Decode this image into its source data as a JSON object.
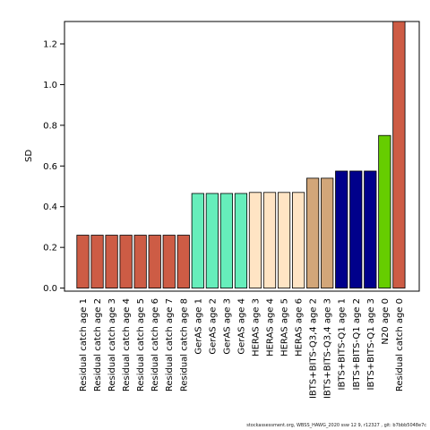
{
  "chart_data": {
    "type": "bar",
    "title": "",
    "xlabel": "",
    "ylabel": "SD",
    "ylim": [
      -0.015,
      1.31
    ],
    "yticks": [
      0.0,
      0.2,
      0.4,
      0.6,
      0.8,
      1.0,
      1.2
    ],
    "grid": false,
    "categories": [
      "Residual catch age 1",
      "Residual catch age 2",
      "Residual catch age 3",
      "Residual catch age 4",
      "Residual catch age 5",
      "Residual catch age 6",
      "Residual catch age 7",
      "Residual catch age 8",
      "GerAS age 1",
      "GerAS age 2",
      "GerAS age 3",
      "GerAS age 4",
      "HERAS age 3",
      "HERAS age 4",
      "HERAS age 5",
      "HERAS age 6",
      "IBTS+BITS-Q3,4 age 2",
      "IBTS+BITS-Q3,4 age 3",
      "IBTS+BITS-Q1 age 1",
      "IBTS+BITS-Q1 age 2",
      "IBTS+BITS-Q1 age 3",
      "N20 age 0",
      "Residual catch age 0"
    ],
    "values": [
      0.26,
      0.26,
      0.26,
      0.26,
      0.26,
      0.26,
      0.26,
      0.26,
      0.465,
      0.465,
      0.465,
      0.465,
      0.47,
      0.47,
      0.47,
      0.47,
      0.54,
      0.54,
      0.575,
      0.575,
      0.575,
      0.75,
      1.31
    ],
    "bar_colors": [
      "#CD5C45",
      "#CD5C45",
      "#CD5C45",
      "#CD5C45",
      "#CD5C45",
      "#CD5C45",
      "#CD5C45",
      "#CD5C45",
      "#66EEBB",
      "#66EEBB",
      "#66EEBB",
      "#66EEBB",
      "#FFE4C4",
      "#FFE4C4",
      "#FFE4C4",
      "#FFE4C4",
      "#D2A679",
      "#D2A679",
      "#00008B",
      "#00008B",
      "#00008B",
      "#66CD00",
      "#CD5C45"
    ]
  },
  "footnote": "stockassessment.org, WBSS_HAWG_2020 ssw 12 9, r12327 , git: b7bbb5048e7c"
}
